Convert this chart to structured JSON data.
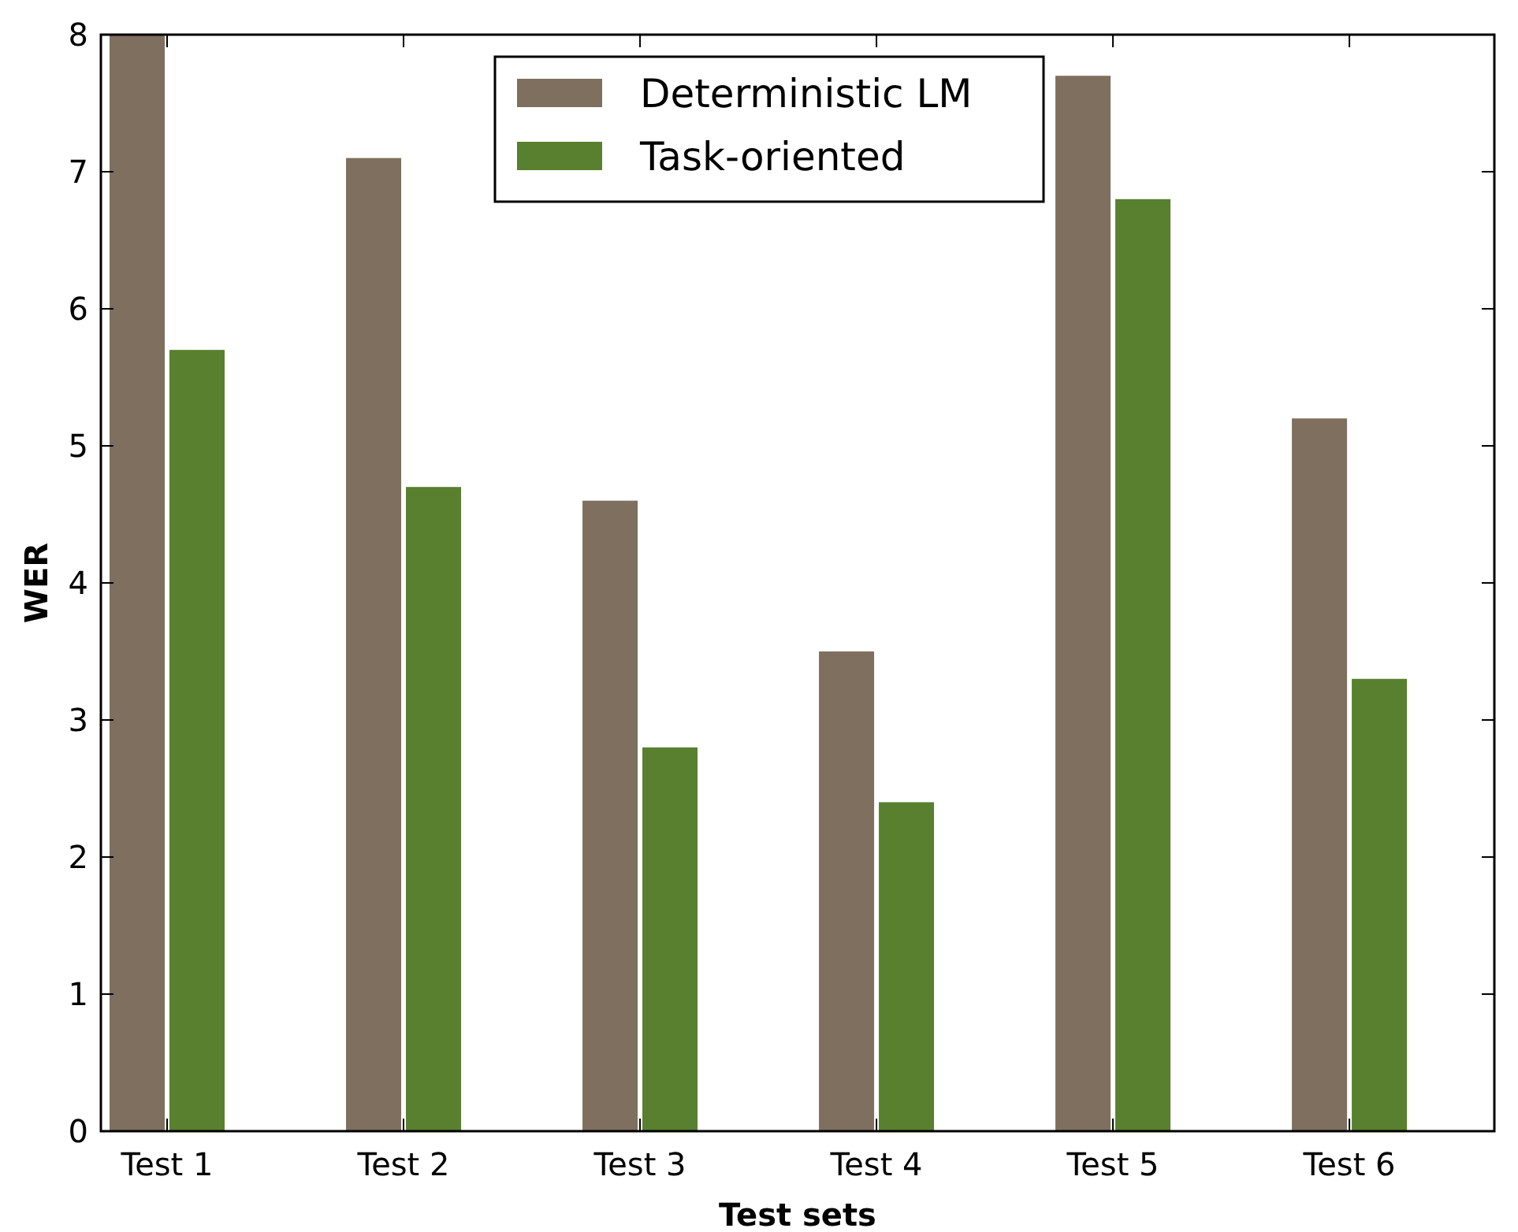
{
  "chart_data": {
    "type": "bar",
    "xlabel": "Test sets",
    "ylabel": "WER",
    "categories": [
      "Test 1",
      "Test 2",
      "Test 3",
      "Test 4",
      "Test 5",
      "Test 6"
    ],
    "series": [
      {
        "name": "Deterministic LM",
        "color": "#7f6f5f",
        "values": [
          8.0,
          7.1,
          4.6,
          3.5,
          7.7,
          5.2
        ]
      },
      {
        "name": "Task-oriented",
        "color": "#58802f",
        "values": [
          5.7,
          4.7,
          2.8,
          2.4,
          6.8,
          3.3
        ]
      }
    ],
    "ylim": [
      0,
      8
    ],
    "yticks": [
      0,
      1,
      2,
      3,
      4,
      5,
      6,
      7,
      8
    ],
    "grid": false,
    "legend": "top"
  }
}
